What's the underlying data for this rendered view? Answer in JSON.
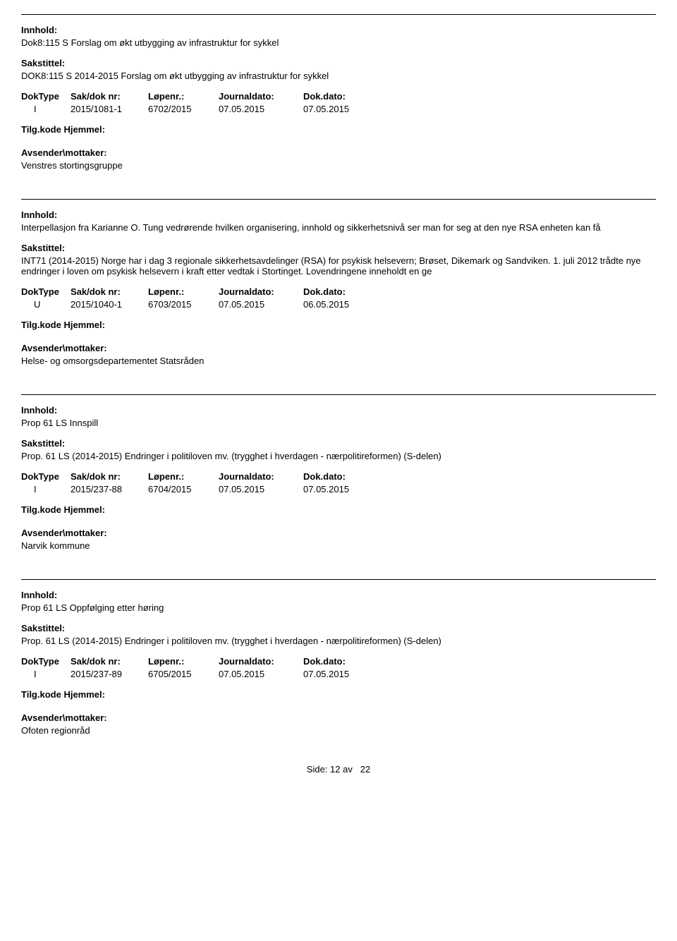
{
  "labels": {
    "innhold": "Innhold:",
    "sakstittel": "Sakstittel:",
    "doktype": "DokType",
    "saknr": "Sak/dok nr:",
    "lopenr": "Løpenr.:",
    "journaldato": "Journaldato:",
    "dokdato": "Dok.dato:",
    "tilgkode": "Tilg.kode",
    "hjemmel": "Hjemmel:",
    "avsender": "Avsender\\mottaker:",
    "side": "Side:",
    "av": "av"
  },
  "records": [
    {
      "innhold": "Dok8:115 S Forslag om økt utbygging av infrastruktur for sykkel",
      "sakstittel": "DOK8:115 S 2014-2015 Forslag om økt utbygging av infrastruktur for sykkel",
      "doktype": "I",
      "saknr": "2015/1081-1",
      "lopenr": "6702/2015",
      "journaldato": "07.05.2015",
      "dokdato": "07.05.2015",
      "avsender": "Venstres stortingsgruppe"
    },
    {
      "innhold": "Interpellasjon fra Karianne O. Tung vedrørende hvilken organisering, innhold og sikkerhetsnivå ser man for seg at den nye RSA enheten kan få",
      "sakstittel": "INT71 (2014-2015)  Norge har i dag 3 regionale sikkerhetsavdelinger (RSA) for psykisk helsevern; Brøset, Dikemark og Sandviken. 1. juli 2012 trådte nye endringer i loven om psykisk helsevern i kraft etter vedtak i Stortinget. Lovendringene inneholdt en ge",
      "doktype": "U",
      "saknr": "2015/1040-1",
      "lopenr": "6703/2015",
      "journaldato": "07.05.2015",
      "dokdato": "06.05.2015",
      "avsender": "Helse- og omsorgsdepartementet Statsråden"
    },
    {
      "innhold": "Prop 61 LS Innspill",
      "sakstittel": "Prop. 61 LS (2014-2015) Endringer i politiloven mv. (trygghet i hverdagen - nærpolitireformen) (S-delen)",
      "doktype": "I",
      "saknr": "2015/237-88",
      "lopenr": "6704/2015",
      "journaldato": "07.05.2015",
      "dokdato": "07.05.2015",
      "avsender": "Narvik kommune"
    },
    {
      "innhold": "Prop 61 LS Oppfølging etter høring",
      "sakstittel": "Prop. 61 LS (2014-2015) Endringer i politiloven mv. (trygghet i hverdagen - nærpolitireformen) (S-delen)",
      "doktype": "I",
      "saknr": "2015/237-89",
      "lopenr": "6705/2015",
      "journaldato": "07.05.2015",
      "dokdato": "07.05.2015",
      "avsender": "Ofoten regionråd"
    }
  ],
  "footer": {
    "page": "12",
    "total": "22"
  }
}
